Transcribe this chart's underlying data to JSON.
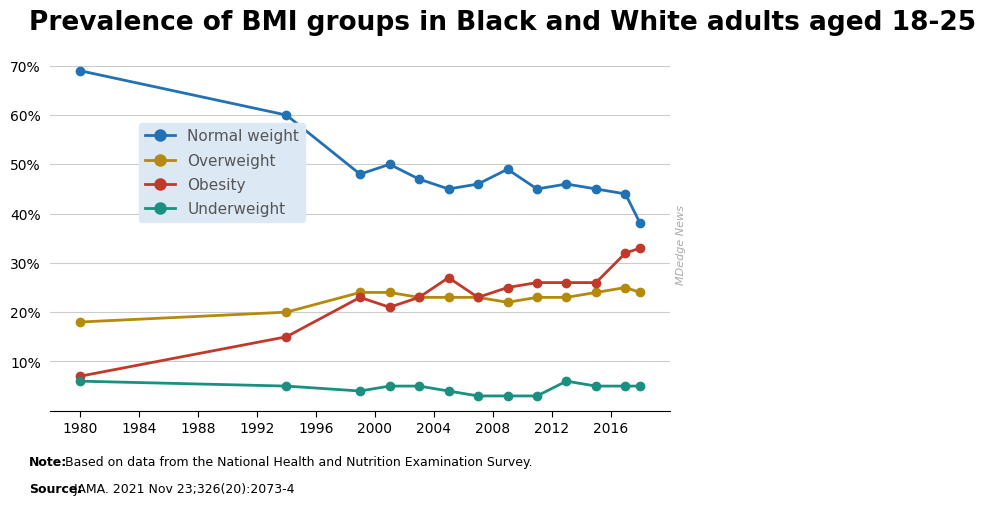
{
  "title": "Prevalence of BMI groups in Black and White adults aged 18-25",
  "note_bold": "Note:",
  "note_rest": " Based on data from the National Health and Nutrition Examination Survey.",
  "source_bold": "Source:",
  "source_rest": " JAMA. 2021 Nov 23;326(20):2073-4",
  "watermark": "MDedge News",
  "series": {
    "Normal weight": {
      "color": "#2271b3",
      "x": [
        1980,
        1994,
        1999,
        2001,
        2003,
        2005,
        2007,
        2009,
        2011,
        2013,
        2015,
        2017,
        2018
      ],
      "y": [
        69,
        60,
        48,
        50,
        47,
        45,
        46,
        49,
        45,
        46,
        45,
        44,
        38
      ]
    },
    "Overweight": {
      "color": "#b5890a",
      "x": [
        1980,
        1994,
        1999,
        2001,
        2003,
        2005,
        2007,
        2009,
        2011,
        2013,
        2015,
        2017,
        2018
      ],
      "y": [
        18,
        20,
        24,
        24,
        23,
        23,
        23,
        22,
        23,
        23,
        24,
        25,
        24
      ]
    },
    "Obesity": {
      "color": "#c0392b",
      "x": [
        1980,
        1994,
        1999,
        2001,
        2003,
        2005,
        2007,
        2009,
        2011,
        2013,
        2015,
        2017,
        2018
      ],
      "y": [
        7,
        15,
        23,
        21,
        23,
        27,
        23,
        25,
        26,
        26,
        26,
        32,
        33
      ]
    },
    "Underweight": {
      "color": "#1a9080",
      "x": [
        1980,
        1994,
        1999,
        2001,
        2003,
        2005,
        2007,
        2009,
        2011,
        2013,
        2015,
        2017,
        2018
      ],
      "y": [
        6,
        5,
        4,
        5,
        5,
        4,
        3,
        3,
        3,
        6,
        5,
        5,
        5
      ]
    }
  },
  "series_order": [
    "Normal weight",
    "Overweight",
    "Obesity",
    "Underweight"
  ],
  "xlim": [
    1978,
    2020
  ],
  "ylim": [
    0,
    75
  ],
  "yticks": [
    0,
    10,
    20,
    30,
    40,
    50,
    60,
    70
  ],
  "xticks": [
    1980,
    1984,
    1988,
    1992,
    1996,
    2000,
    2004,
    2008,
    2012,
    2016
  ],
  "background_color": "#ffffff",
  "grid_color": "#cccccc",
  "title_fontsize": 19,
  "legend_bg": "#dce9f5",
  "legend_text_color": "#555555",
  "legend_fontsize": 11,
  "tick_labelsize": 10,
  "note_fontsize": 9,
  "watermark_color": "#aaaaaa",
  "watermark_fontsize": 8
}
